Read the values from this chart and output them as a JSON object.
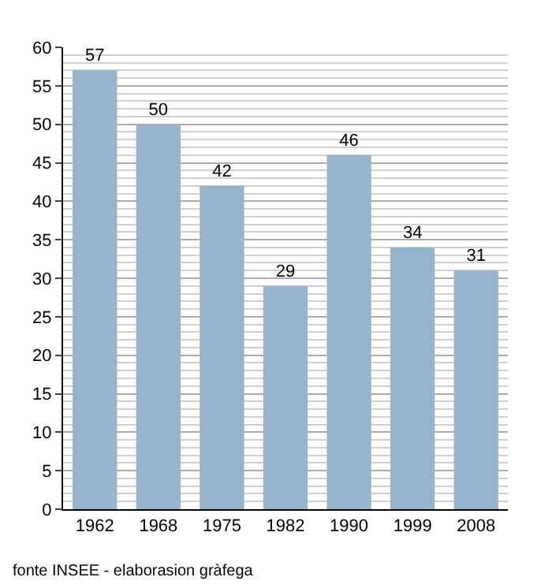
{
  "chart_data": {
    "type": "bar",
    "categories": [
      "1962",
      "1968",
      "1975",
      "1982",
      "1990",
      "1999",
      "2008"
    ],
    "values": [
      57,
      50,
      42,
      29,
      46,
      34,
      31
    ],
    "color": "#9ab3cd",
    "data_labels": true,
    "ylim": [
      0,
      60
    ],
    "yticks": [
      0,
      5,
      10,
      15,
      20,
      25,
      30,
      35,
      40,
      45,
      50,
      55,
      60
    ],
    "grid": "y",
    "annotations": [
      "fonte INSEE - elaborasion gràfega"
    ]
  }
}
